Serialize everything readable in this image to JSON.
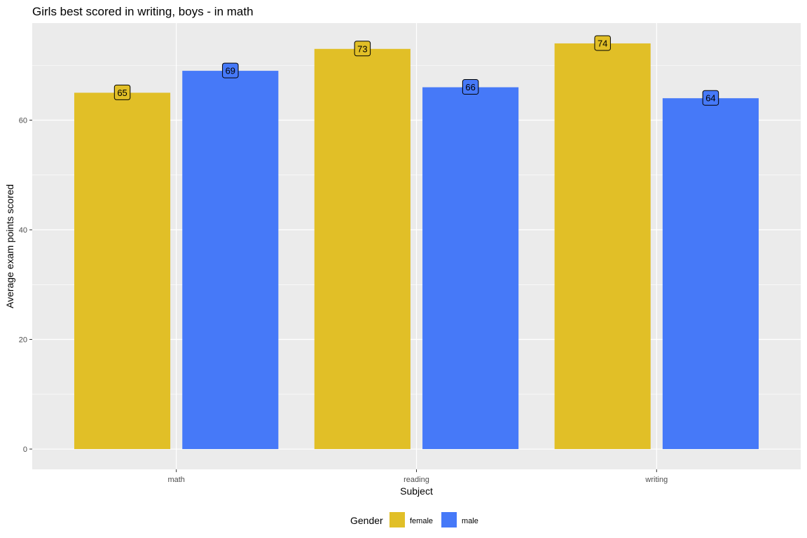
{
  "chart_data": {
    "type": "bar",
    "title": "Girls best scored in writing, boys - in math",
    "xlabel": "Subject",
    "ylabel": "Average exam points scored",
    "categories": [
      "math",
      "reading",
      "writing"
    ],
    "series": [
      {
        "name": "female",
        "color": "#E1BF27",
        "values": [
          65,
          73,
          74
        ],
        "labels": [
          "65",
          "73",
          "74"
        ]
      },
      {
        "name": "male",
        "color": "#4679F8",
        "values": [
          69,
          66,
          64
        ],
        "labels": [
          "69",
          "66",
          "64"
        ]
      }
    ],
    "ylim": [
      -3.7,
      77.7
    ],
    "yticks": [
      0,
      20,
      40,
      60
    ],
    "ytick_labels": [
      "0",
      "20",
      "40",
      "60"
    ],
    "grid": true,
    "panel_color": "#EBEBEB",
    "legend": {
      "title": "Gender",
      "position": "bottom"
    }
  }
}
